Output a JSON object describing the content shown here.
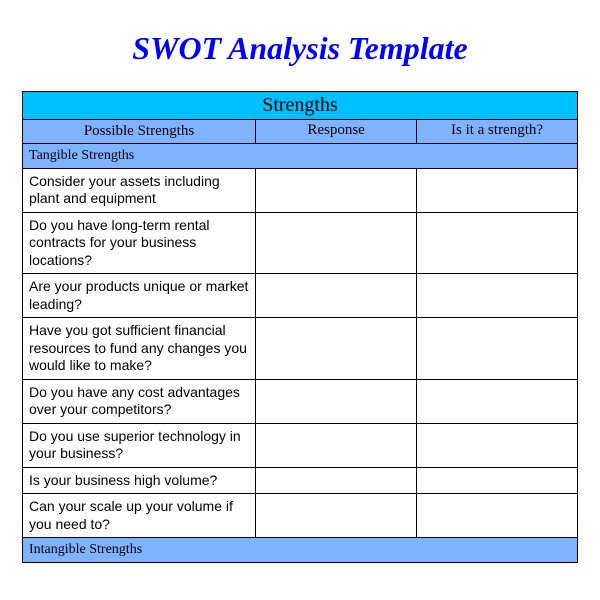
{
  "title": "SWOT Analysis Template",
  "title_color": "#0000ff",
  "table": {
    "section_header": "Strengths",
    "section_header_bg": "#00bfff",
    "columns": [
      "Possible Strengths",
      "Response",
      "Is it a strength?"
    ],
    "column_header_bg": "#80b3ff",
    "subsections": [
      {
        "label": "Tangible Strengths",
        "bg": "#80b3ff",
        "rows": [
          [
            "Consider your assets including plant and equipment",
            "",
            ""
          ],
          [
            "Do you have long-term rental contracts for your business locations?",
            "",
            ""
          ],
          [
            "Are your products unique or market leading?",
            "",
            ""
          ],
          [
            "Have you got sufficient financial resources to fund any changes you would like to make?",
            "",
            ""
          ],
          [
            "Do you have any cost advantages over your competitors?",
            "",
            ""
          ],
          [
            "Do you use superior technology in your business?",
            "",
            ""
          ],
          [
            "Is your business high volume?",
            "",
            ""
          ],
          [
            "Can your scale up your volume if you need to?",
            "",
            ""
          ]
        ]
      },
      {
        "label": "Intangible Strengths",
        "bg": "#80b3ff",
        "rows": []
      }
    ],
    "border_color": "#000000",
    "cell_bg": "#ffffff",
    "text_color": "#000000"
  }
}
